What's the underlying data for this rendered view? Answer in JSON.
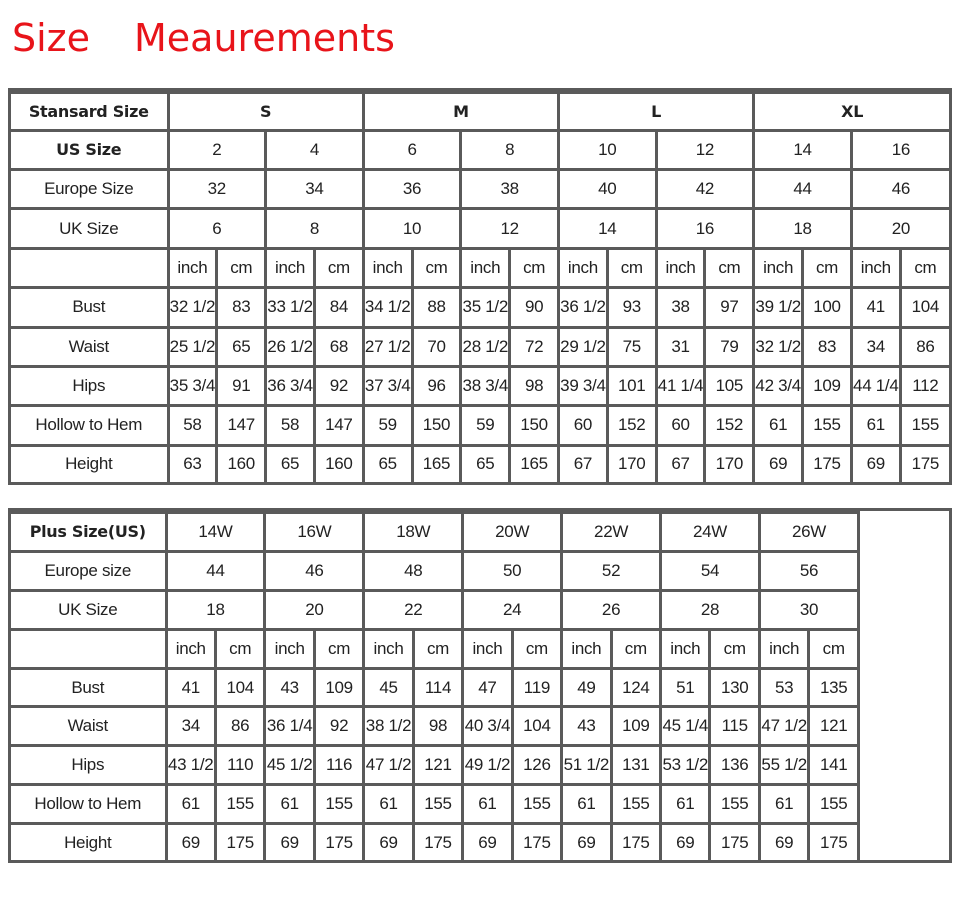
{
  "title": {
    "word1": "Size",
    "word2": "Meaurements",
    "color": "#e8141a"
  },
  "standard": {
    "header_label": "Stansard Size",
    "groups": [
      "S",
      "M",
      "L",
      "XL"
    ],
    "us_label": "US Size",
    "us": [
      "2",
      "4",
      "6",
      "8",
      "10",
      "12",
      "14",
      "16"
    ],
    "eu_label": "Europe Size",
    "eu": [
      "32",
      "34",
      "36",
      "38",
      "40",
      "42",
      "44",
      "46"
    ],
    "uk_label": "UK Size",
    "uk": [
      "6",
      "8",
      "10",
      "12",
      "14",
      "16",
      "18",
      "20"
    ],
    "units": [
      "inch",
      "cm"
    ],
    "rows": [
      {
        "label": "Bust",
        "values": [
          "32 1/2",
          "83",
          "33 1/2",
          "84",
          "34 1/2",
          "88",
          "35 1/2",
          "90",
          "36 1/2",
          "93",
          "38",
          "97",
          "39 1/2",
          "100",
          "41",
          "104"
        ]
      },
      {
        "label": "Waist",
        "values": [
          "25 1/2",
          "65",
          "26 1/2",
          "68",
          "27 1/2",
          "70",
          "28 1/2",
          "72",
          "29 1/2",
          "75",
          "31",
          "79",
          "32 1/2",
          "83",
          "34",
          "86"
        ]
      },
      {
        "label": "Hips",
        "values": [
          "35 3/4",
          "91",
          "36 3/4",
          "92",
          "37 3/4",
          "96",
          "38 3/4",
          "98",
          "39 3/4",
          "101",
          "41 1/4",
          "105",
          "42 3/4",
          "109",
          "44 1/4",
          "112"
        ]
      },
      {
        "label": "Hollow to Hem",
        "values": [
          "58",
          "147",
          "58",
          "147",
          "59",
          "150",
          "59",
          "150",
          "60",
          "152",
          "60",
          "152",
          "61",
          "155",
          "61",
          "155"
        ]
      },
      {
        "label": "Height",
        "values": [
          "63",
          "160",
          "65",
          "160",
          "65",
          "165",
          "65",
          "165",
          "67",
          "170",
          "67",
          "170",
          "69",
          "175",
          "69",
          "175"
        ]
      }
    ]
  },
  "plus": {
    "header_label": "Plus Size(US)",
    "us": [
      "14W",
      "16W",
      "18W",
      "20W",
      "22W",
      "24W",
      "26W"
    ],
    "eu_label": "Europe size",
    "eu": [
      "44",
      "46",
      "48",
      "50",
      "52",
      "54",
      "56"
    ],
    "uk_label": "UK Size",
    "uk": [
      "18",
      "20",
      "22",
      "24",
      "26",
      "28",
      "30"
    ],
    "units": [
      "inch",
      "cm"
    ],
    "rows": [
      {
        "label": "Bust",
        "values": [
          "41",
          "104",
          "43",
          "109",
          "45",
          "114",
          "47",
          "119",
          "49",
          "124",
          "51",
          "130",
          "53",
          "135"
        ]
      },
      {
        "label": "Waist",
        "values": [
          "34",
          "86",
          "36 1/4",
          "92",
          "38 1/2",
          "98",
          "40 3/4",
          "104",
          "43",
          "109",
          "45 1/4",
          "115",
          "47 1/2",
          "121"
        ]
      },
      {
        "label": "Hips",
        "values": [
          "43 1/2",
          "110",
          "45 1/2",
          "116",
          "47 1/2",
          "121",
          "49 1/2",
          "126",
          "51 1/2",
          "131",
          "53 1/2",
          "136",
          "55 1/2",
          "141"
        ]
      },
      {
        "label": "Hollow to Hem",
        "values": [
          "61",
          "155",
          "61",
          "155",
          "61",
          "155",
          "61",
          "155",
          "61",
          "155",
          "61",
          "155",
          "61",
          "155"
        ]
      },
      {
        "label": "Height",
        "values": [
          "69",
          "175",
          "69",
          "175",
          "69",
          "175",
          "69",
          "175",
          "69",
          "175",
          "69",
          "175",
          "69",
          "175"
        ]
      }
    ]
  }
}
